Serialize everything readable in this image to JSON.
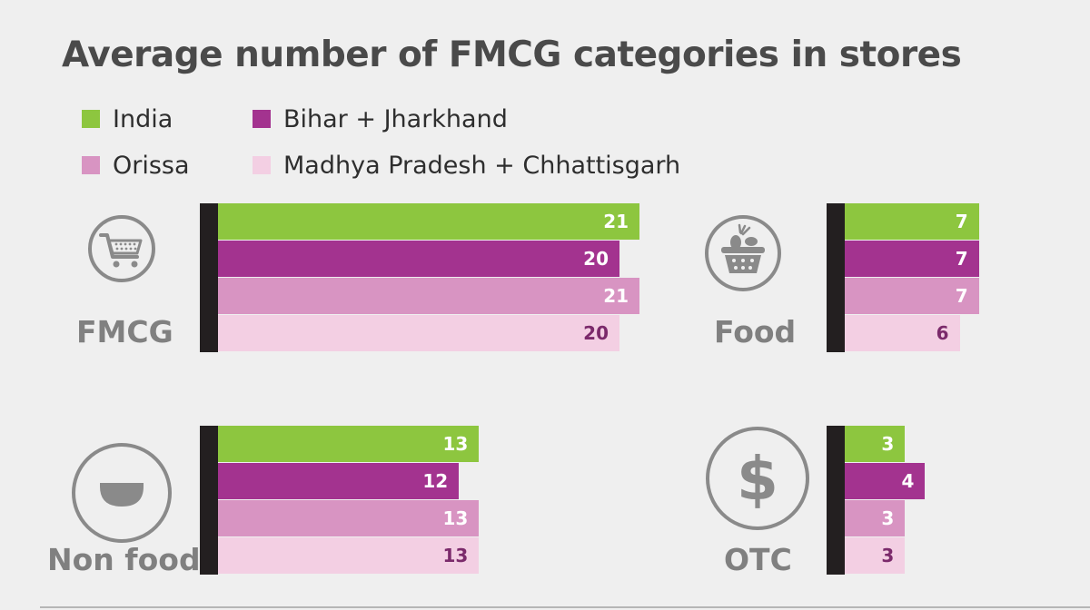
{
  "chart_data": {
    "type": "bar",
    "orientation": "horizontal",
    "title": "Average number of FMCG categories in stores",
    "legend": [
      {
        "name": "India",
        "color": "#8dc63f"
      },
      {
        "name": "Bihar + Jharkhand",
        "color": "#a3338f"
      },
      {
        "name": "Orissa",
        "color": "#d894c2"
      },
      {
        "name": "Madhya Pradesh + Chhattisgarh",
        "color": "#f3cfe3"
      }
    ],
    "label_colors": [
      "#ffffff",
      "#ffffff",
      "#ffffff",
      "#7b2a6b"
    ],
    "panels": [
      {
        "category": "FMCG",
        "icon": "shopping-cart-icon",
        "values": [
          21,
          20,
          21,
          20
        ]
      },
      {
        "category": "Food",
        "icon": "food-basket-icon",
        "values": [
          7,
          7,
          7,
          6
        ]
      },
      {
        "category": "Non food",
        "icon": "bowl-icon",
        "values": [
          13,
          12,
          13,
          13
        ]
      },
      {
        "category": "OTC",
        "icon": "dollar-icon",
        "values": [
          3,
          4,
          3,
          3
        ]
      }
    ]
  }
}
